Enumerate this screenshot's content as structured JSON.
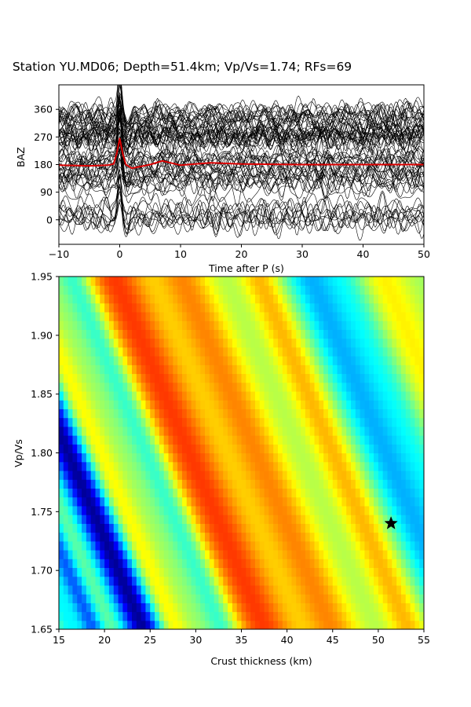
{
  "title": "Station YU.MD06; Depth=51.4km; Vp/Vs=1.74; RFs=69",
  "chart_data": [
    {
      "type": "line",
      "xlabel": "Time after P (s)",
      "ylabel": "BAZ",
      "xlim": [
        -10,
        50
      ],
      "ylim": [
        -80,
        440
      ],
      "xticks": [
        "−10",
        "0",
        "10",
        "20",
        "30",
        "40",
        "50"
      ],
      "yticks": [
        "0",
        "90",
        "180",
        "270",
        "360"
      ],
      "trace_count": 69,
      "stack_color": "#dd0000",
      "trace_color": "#000000",
      "stack_baseline": 180,
      "stack": {
        "x": [
          -10,
          -5,
          -2,
          -1,
          -0.5,
          0,
          0.5,
          1,
          2,
          3,
          5,
          7,
          10,
          15,
          20,
          30,
          40,
          50
        ],
        "y": [
          178,
          176,
          178,
          182,
          215,
          265,
          215,
          180,
          168,
          172,
          180,
          192,
          178,
          186,
          182,
          180,
          180,
          180
        ]
      }
    },
    {
      "type": "heatmap",
      "xlabel": "Crust thickness (km)",
      "ylabel": "Vp/Vs",
      "xlim": [
        15,
        55
      ],
      "ylim": [
        1.65,
        1.95
      ],
      "xticks": [
        "15",
        "20",
        "25",
        "30",
        "35",
        "40",
        "45",
        "50",
        "55"
      ],
      "yticks": [
        "1.65",
        "1.70",
        "1.75",
        "1.80",
        "1.85",
        "1.90",
        "1.95"
      ],
      "colormap": "jet",
      "best_fit": {
        "H": 51.4,
        "vpvs": 1.74,
        "marker": "star"
      }
    }
  ]
}
